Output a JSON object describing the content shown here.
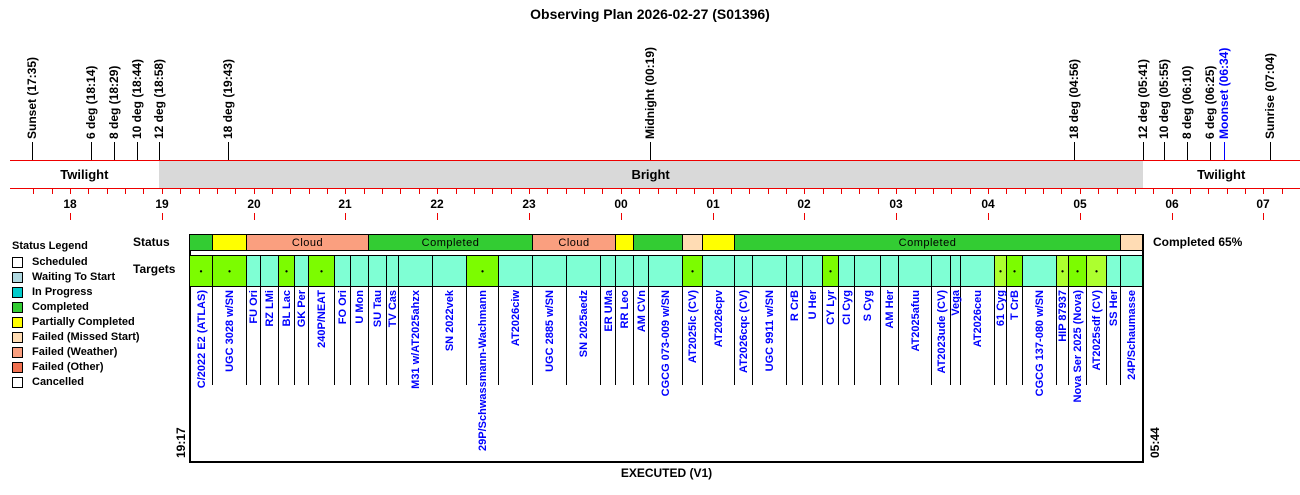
{
  "title": "Observing Plan 2026-02-27 (S01396)",
  "events": [
    {
      "label": "Sunset (17:35)",
      "time": "17:35",
      "color": "#000000"
    },
    {
      "label": "6 deg (18:14)",
      "time": "18:14",
      "color": "#000000"
    },
    {
      "label": "8 deg (18:29)",
      "time": "18:29",
      "color": "#000000"
    },
    {
      "label": "10 deg (18:44)",
      "time": "18:44",
      "color": "#000000"
    },
    {
      "label": "12 deg (18:58)",
      "time": "18:58",
      "color": "#000000"
    },
    {
      "label": "18 deg (19:43)",
      "time": "19:43",
      "color": "#000000"
    },
    {
      "label": "Midnight (00:19)",
      "time": "00:19",
      "color": "#000000"
    },
    {
      "label": "18 deg (04:56)",
      "time": "04:56",
      "color": "#000000"
    },
    {
      "label": "12 deg (05:41)",
      "time": "05:41",
      "color": "#000000"
    },
    {
      "label": "10 deg (05:55)",
      "time": "05:55",
      "color": "#000000"
    },
    {
      "label": "8 deg (06:10)",
      "time": "06:10",
      "color": "#000000"
    },
    {
      "label": "6 deg (06:25)",
      "time": "06:25",
      "color": "#000000"
    },
    {
      "label": "Moonset (06:34)",
      "time": "06:34",
      "color": "#0000ff"
    },
    {
      "label": "Sunrise (07:04)",
      "time": "07:04",
      "color": "#000000"
    }
  ],
  "bands": [
    {
      "label": "Twilight",
      "from": "17:35",
      "to": "18:58",
      "color": "#ffffff"
    },
    {
      "label": "Bright",
      "from": "18:58",
      "to": "05:41",
      "color": "#d9d9d9"
    },
    {
      "label": "Twilight",
      "from": "05:41",
      "to": "07:04",
      "color": "#ffffff"
    }
  ],
  "hours": [
    "18",
    "19",
    "20",
    "21",
    "22",
    "23",
    "00",
    "01",
    "02",
    "03",
    "04",
    "05",
    "06",
    "07"
  ],
  "row_labels": {
    "status": "Status",
    "targets": "Targets"
  },
  "status_segments": [
    {
      "label": "",
      "color": "#33cc33"
    },
    {
      "label": "",
      "color": "#ffff00"
    },
    {
      "label": "Cloud",
      "color": "#fa9f7f"
    },
    {
      "label": "Completed",
      "color": "#33cc33"
    },
    {
      "label": "Cloud",
      "color": "#fa9f7f"
    },
    {
      "label": "",
      "color": "#ffff00"
    },
    {
      "label": "",
      "color": "#33cc33"
    },
    {
      "label": "",
      "color": "#ffdcb4"
    },
    {
      "label": "",
      "color": "#ffff00"
    },
    {
      "label": "Completed",
      "color": "#33cc33"
    },
    {
      "label": "",
      "color": "#ffdcb4"
    }
  ],
  "completion": "Completed 65%",
  "targets": [
    {
      "name": "C/2022 E2 (ATLAS)",
      "marker": "lawngreen"
    },
    {
      "name": "UGC 3028 w/SN",
      "marker": "lawngreen"
    },
    {
      "name": "FU Ori"
    },
    {
      "name": "RZ LMi"
    },
    {
      "name": "BL Lac",
      "marker": "lawngreen"
    },
    {
      "name": "GK Per"
    },
    {
      "name": "240P/NEAT",
      "marker": "lawngreen"
    },
    {
      "name": "FO Ori"
    },
    {
      "name": "U Mon"
    },
    {
      "name": "SU Tau"
    },
    {
      "name": "TV Cas"
    },
    {
      "name": "M31 w/AT2025ahzx"
    },
    {
      "name": "SN 2022vek"
    },
    {
      "name": "29P/Schwassmann-Wachmann",
      "marker": "lawngreen"
    },
    {
      "name": "AT2026ciw"
    },
    {
      "name": "UGC 2885 w/SN"
    },
    {
      "name": "SN 2025aedz"
    },
    {
      "name": "ER UMa"
    },
    {
      "name": "RR Leo"
    },
    {
      "name": "AM CVn"
    },
    {
      "name": "CGCG 073-009 w/SN"
    },
    {
      "name": "AT2025lc (CV)",
      "marker": "lawngreen"
    },
    {
      "name": "AT2026cpv"
    },
    {
      "name": "AT2026cqc (CV)"
    },
    {
      "name": "UGC 9911 w/SN"
    },
    {
      "name": "R CrB"
    },
    {
      "name": "U Her"
    },
    {
      "name": "CY Lyr",
      "marker": "lawngreen"
    },
    {
      "name": "CI Cyg"
    },
    {
      "name": "S Cyg"
    },
    {
      "name": "AM Her"
    },
    {
      "name": "AT2025afuu"
    },
    {
      "name": "AT2023ude (CV)"
    },
    {
      "name": "Vega"
    },
    {
      "name": "AT2026ceu"
    },
    {
      "name": "61 Cyg",
      "marker": "greenyellow"
    },
    {
      "name": "T CrB",
      "marker": "lawngreen"
    },
    {
      "name": "CGCG 137-080 w/SN"
    },
    {
      "name": "HIP 87937",
      "marker": "greenyellow"
    },
    {
      "name": "Nova Ser 2025 (Nova)",
      "marker": "lawngreen"
    },
    {
      "name": "AT2025sdf (CV)",
      "marker": "greenyellow"
    },
    {
      "name": "SS Her"
    },
    {
      "name": "24P/Schaumasse"
    }
  ],
  "start_time": "19:17",
  "end_time": "05:44",
  "footer": "EXECUTED (V1)",
  "legend": {
    "title": "Status Legend",
    "items": [
      {
        "label": "Scheduled",
        "color": "#ffffff"
      },
      {
        "label": "Waiting To Start",
        "color": "#b0d8e0"
      },
      {
        "label": "In Progress",
        "color": "#00cccc"
      },
      {
        "label": "Completed",
        "color": "#33cc33"
      },
      {
        "label": "Partially Completed",
        "color": "#ffff00"
      },
      {
        "label": "Failed (Missed Start)",
        "color": "#ffdcb4"
      },
      {
        "label": "Failed (Weather)",
        "color": "#fa9f7f"
      },
      {
        "label": "Failed (Other)",
        "color": "#f07050"
      },
      {
        "label": "Cancelled",
        "color": "#ffffff"
      }
    ]
  }
}
